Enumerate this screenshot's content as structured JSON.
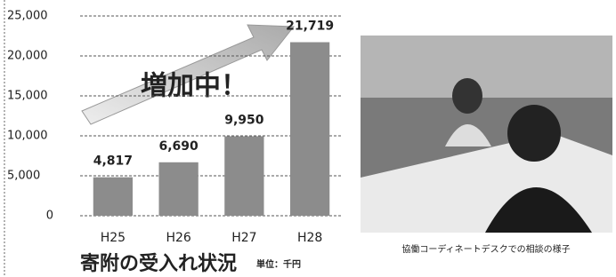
{
  "chart_data": {
    "type": "bar",
    "title": "寄附の受入れ状況",
    "unit_note": "単位：千円",
    "annotation": "増加中！",
    "categories": [
      "H25",
      "H26",
      "H27",
      "H28"
    ],
    "values": [
      4817,
      6690,
      9950,
      21719
    ],
    "value_labels": [
      "4,817",
      "6,690",
      "9,950",
      "21,719"
    ],
    "color": "#8c8c8c",
    "ylim": [
      0,
      25000
    ],
    "yticks": [
      0,
      {
        "value": 5000,
        "label": "5,000"
      },
      {
        "value": 10000,
        "label": "10,000"
      },
      {
        "value": 15000,
        "label": "15,000"
      },
      {
        "value": 20000,
        "label": "20,000"
      },
      {
        "value": 25000,
        "label": "25,000"
      }
    ],
    "grid": true
  },
  "photo_caption": "協働コーディネートデスクでの相談の様子"
}
